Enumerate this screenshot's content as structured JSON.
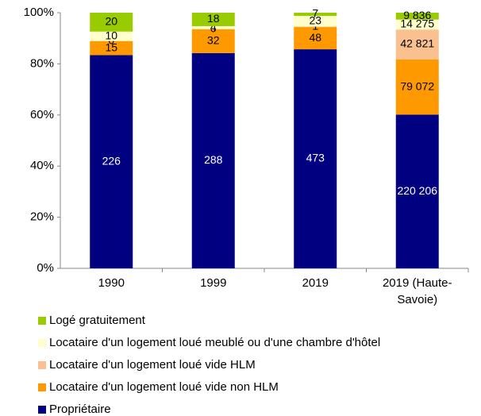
{
  "chart_data": {
    "type": "bar",
    "stacked": "percent",
    "categories": [
      "1990",
      "1999",
      "2019",
      "2019 (Haute-Savoie)"
    ],
    "series": [
      {
        "name": "Propriétaire",
        "color": "#000080",
        "values": [
          226,
          288,
          473,
          220206
        ],
        "value_labels": [
          "226",
          "288",
          "473",
          "220 206"
        ]
      },
      {
        "name": "Locataire d'un logement loué vide non HLM",
        "color": "#FF9900",
        "values": [
          15,
          32,
          48,
          79072
        ],
        "value_labels": [
          "15",
          "32",
          "48",
          "79 072"
        ]
      },
      {
        "name": "Locataire d'un logement loué vide HLM",
        "color": "#FAC090",
        "values": [
          0,
          0,
          1,
          42821
        ],
        "value_labels": [
          "0",
          "0",
          "1",
          "42 821"
        ]
      },
      {
        "name": "Locataire d'un logement loué meublé ou d'une chambre d'hôtel",
        "color": "#FFFFCC",
        "values": [
          10,
          4,
          23,
          14275
        ],
        "value_labels": [
          "10",
          "4",
          "23",
          "14 275"
        ]
      },
      {
        "name": "Logé gratuitement",
        "color": "#99CC00",
        "values": [
          20,
          18,
          7,
          9836
        ],
        "value_labels": [
          "20",
          "18",
          "7",
          "9 836"
        ]
      }
    ],
    "ylim": [
      0,
      100
    ],
    "yticks": [
      {
        "value": 0,
        "label": "0%"
      },
      {
        "value": 20,
        "label": "20%"
      },
      {
        "value": 40,
        "label": "40%"
      },
      {
        "value": 60,
        "label": "60%"
      },
      {
        "value": 80,
        "label": "80%"
      },
      {
        "value": 100,
        "label": "100%"
      }
    ],
    "legend": "bottom"
  }
}
